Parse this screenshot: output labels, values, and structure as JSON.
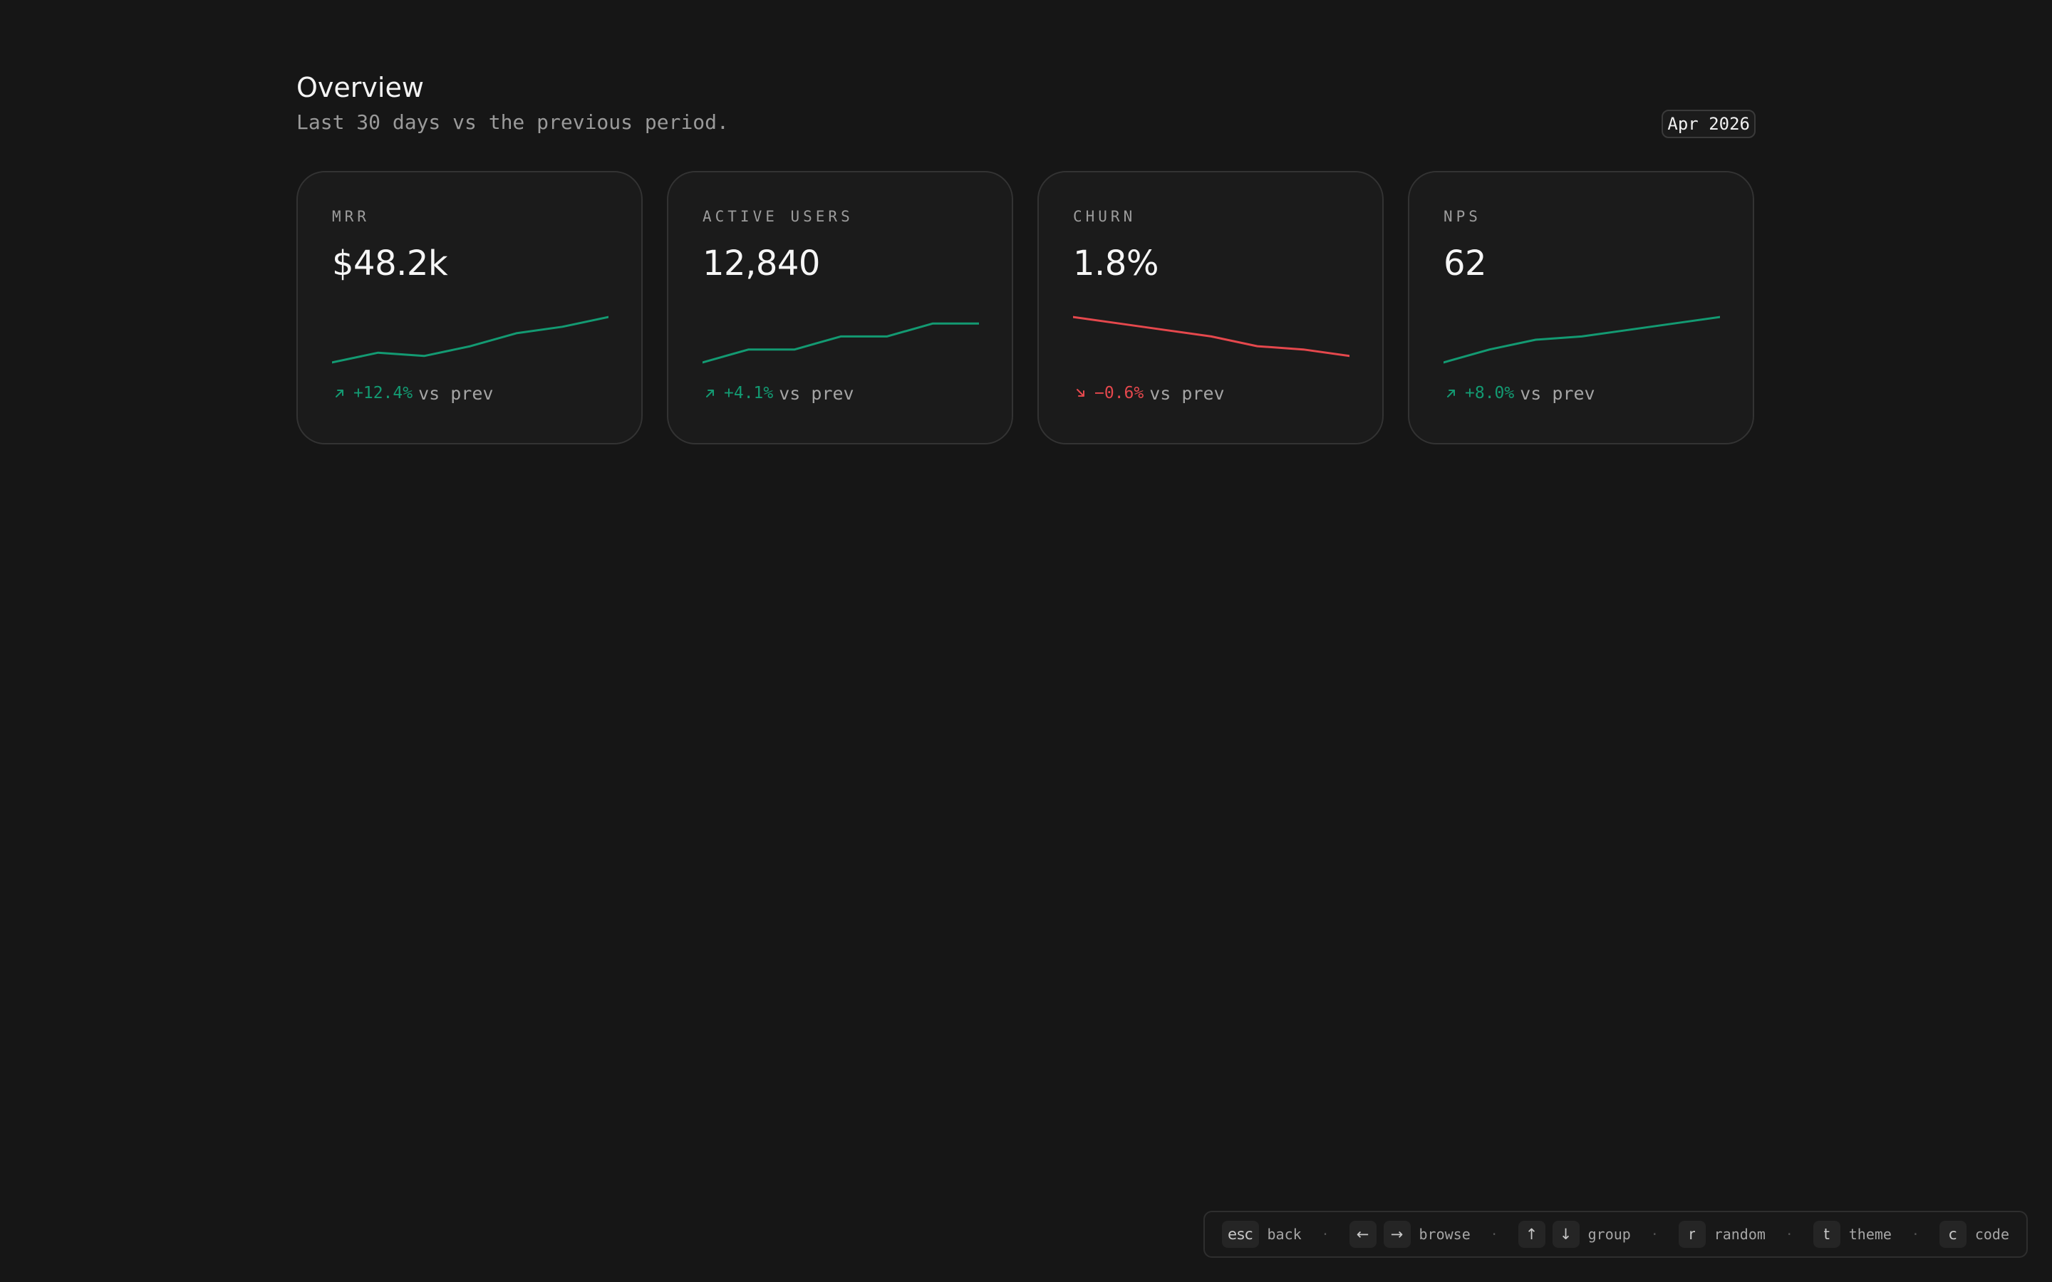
{
  "header": {
    "title": "Overview",
    "subtitle": "Last 30 days vs the previous period.",
    "date_badge": "Apr 2026"
  },
  "colors": {
    "positive": "#139a72",
    "negative": "#e5484d",
    "background": "#161616",
    "card_bg": "#1b1b1b"
  },
  "cards": [
    {
      "label": "MRR",
      "value": "$48.2k",
      "trend": "up",
      "arrow_icon": "arrow-up-right-icon",
      "delta": "+12.4%",
      "suffix": "vs prev",
      "sparkline": [
        18,
        21,
        20,
        23,
        27,
        29,
        32
      ]
    },
    {
      "label": "ACTIVE USERS",
      "value": "12,840",
      "trend": "up",
      "arrow_icon": "arrow-up-right-icon",
      "delta": "+4.1%",
      "suffix": "vs prev",
      "sparkline": [
        18,
        22,
        22,
        26,
        26,
        30,
        30
      ]
    },
    {
      "label": "CHURN",
      "value": "1.8%",
      "trend": "down",
      "arrow_icon": "arrow-down-right-icon",
      "delta": "−0.6%",
      "suffix": "vs prev",
      "sparkline": [
        32,
        30,
        28,
        26,
        23,
        22,
        20
      ]
    },
    {
      "label": "NPS",
      "value": "62",
      "trend": "up",
      "arrow_icon": "arrow-up-right-icon",
      "delta": "+8.0%",
      "suffix": "vs prev",
      "sparkline": [
        18,
        22,
        25,
        26,
        28,
        30,
        32
      ]
    }
  ],
  "shortcuts": [
    {
      "keys": [
        "esc"
      ],
      "icons": [],
      "label": "back"
    },
    {
      "keys": [
        "←",
        "→"
      ],
      "icons": [
        "arrow-left-icon",
        "arrow-right-icon"
      ],
      "label": "browse"
    },
    {
      "keys": [
        "↑",
        "↓"
      ],
      "icons": [
        "arrow-up-icon",
        "arrow-down-icon"
      ],
      "label": "group"
    },
    {
      "keys": [
        "r"
      ],
      "icons": [],
      "label": "random"
    },
    {
      "keys": [
        "t"
      ],
      "icons": [],
      "label": "theme"
    },
    {
      "keys": [
        "c"
      ],
      "icons": [],
      "label": "code"
    }
  ],
  "shortcut_separator": "·"
}
